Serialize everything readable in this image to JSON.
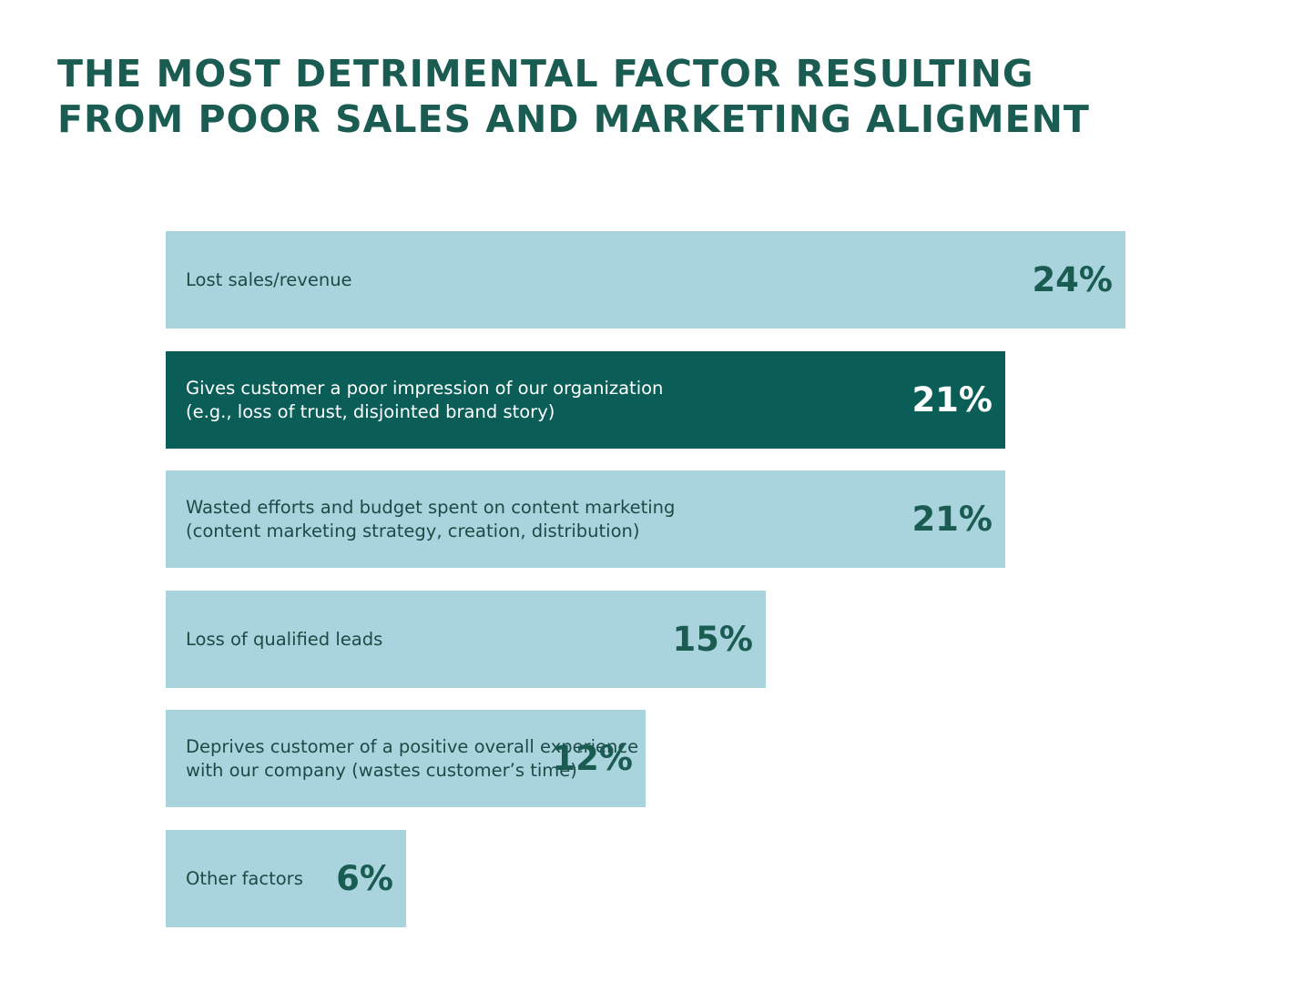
{
  "chart_data": {
    "type": "bar",
    "orientation": "horizontal",
    "title_lines": [
      "THE MOST DETRIMENTAL FACTOR RESULTING",
      "FROM POOR SALES AND MARKETING ALIGMENT"
    ],
    "categories": [
      [
        "Lost sales/revenue"
      ],
      [
        "Gives customer a poor impression of our organization",
        "(e.g., loss of trust, disjointed brand story)"
      ],
      [
        "Wasted efforts and budget spent on content marketing",
        "(content marketing strategy, creation, distribution)"
      ],
      [
        "Loss of qualified leads"
      ],
      [
        "Deprives customer of a positive overall experience",
        "with our company (wastes customer’s time)"
      ],
      [
        "Other factors"
      ]
    ],
    "values": [
      24,
      21,
      21,
      15,
      12,
      6
    ],
    "value_labels": [
      "24%",
      "21%",
      "21%",
      "15%",
      "12%",
      "6%"
    ],
    "highlighted_index": 1,
    "xlim": [
      0,
      24
    ],
    "unit": "%",
    "xlabel": "",
    "ylabel": "",
    "grid": false,
    "legend": "none"
  },
  "colors": {
    "title": "#1a5c52",
    "bar": "#a9d4de",
    "bar_highlight": "#0a5e57",
    "label_text": "#1d4a45",
    "highlight_text": "#ffffff"
  }
}
